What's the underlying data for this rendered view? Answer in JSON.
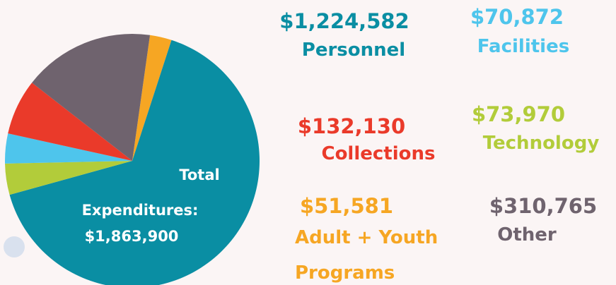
{
  "chart_data": {
    "type": "pie",
    "categories": [
      "Adult + Youth Programs",
      "Personnel",
      "Technology",
      "Facilities",
      "Collections",
      "Other"
    ],
    "values": [
      51581,
      1224582,
      73970,
      70872,
      132130,
      310765
    ],
    "value_labels": [
      "$51,581",
      "$1,224,582",
      "$73,970",
      "$70,872",
      "$132,130",
      "$310,765"
    ],
    "colors": [
      "#f6a623",
      "#0a8ea3",
      "#b2cc3a",
      "#4ec5ec",
      "#ea3a2a",
      "#6f636e"
    ],
    "annotations": [
      "Total",
      "Expenditures:",
      "$1,863,900"
    ]
  }
}
